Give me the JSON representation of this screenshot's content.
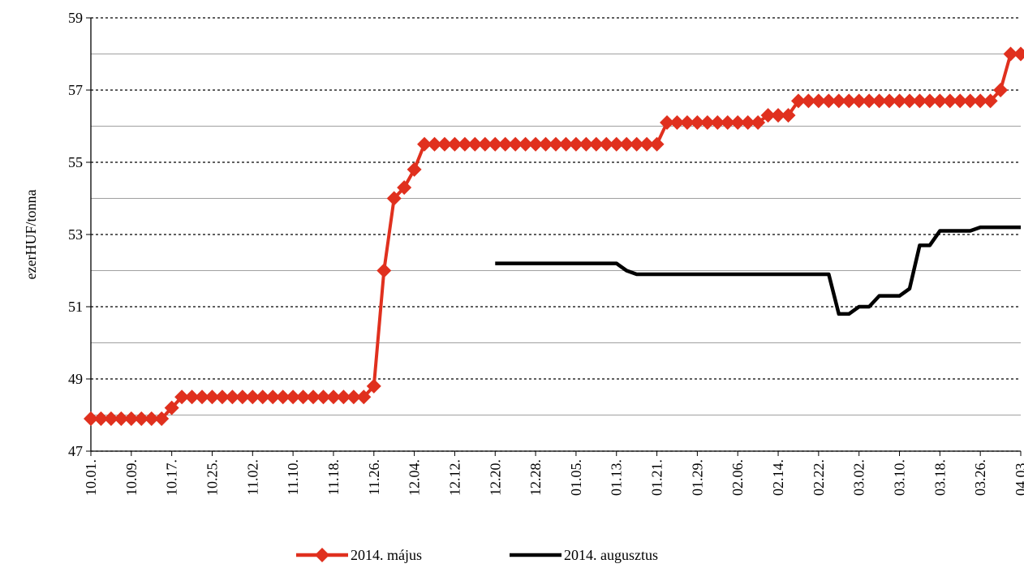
{
  "chart_data": {
    "type": "line",
    "y_label": "ezerHUF/tonna",
    "categories": [
      "10.01.",
      null,
      null,
      null,
      "10.09.",
      null,
      null,
      null,
      "10.17.",
      null,
      null,
      null,
      "10.25.",
      null,
      null,
      null,
      "11.02.",
      null,
      null,
      null,
      "11.10.",
      null,
      null,
      null,
      "11.18.",
      null,
      null,
      null,
      "11.26.",
      null,
      null,
      null,
      "12.04.",
      null,
      null,
      null,
      "12.12.",
      null,
      null,
      null,
      "12.20.",
      null,
      null,
      null,
      "12.28.",
      null,
      null,
      null,
      "01.05.",
      null,
      null,
      null,
      "01.13.",
      null,
      null,
      null,
      "01.21.",
      null,
      null,
      null,
      "01.29.",
      null,
      null,
      null,
      "02.06.",
      null,
      null,
      null,
      "02.14.",
      null,
      null,
      null,
      "02.22.",
      null,
      null,
      null,
      "03.02.",
      null,
      null,
      null,
      "03.10.",
      null,
      null,
      null,
      "03.18.",
      null,
      null,
      null,
      "03.26.",
      null,
      null,
      null,
      "04.03."
    ],
    "series": [
      {
        "name": "2014. május",
        "color": "#e0301e",
        "marker": "diamond",
        "values": [
          47.9,
          47.9,
          47.9,
          47.9,
          47.9,
          47.9,
          47.9,
          47.9,
          48.2,
          48.5,
          48.5,
          48.5,
          48.5,
          48.5,
          48.5,
          48.5,
          48.5,
          48.5,
          48.5,
          48.5,
          48.5,
          48.5,
          48.5,
          48.5,
          48.5,
          48.5,
          48.5,
          48.5,
          48.8,
          52,
          54,
          54.3,
          54.8,
          55.5,
          55.5,
          55.5,
          55.5,
          55.5,
          55.5,
          55.5,
          55.5,
          55.5,
          55.5,
          55.5,
          55.5,
          55.5,
          55.5,
          55.5,
          55.5,
          55.5,
          55.5,
          55.5,
          55.5,
          55.5,
          55.5,
          55.5,
          55.5,
          56.1,
          56.1,
          56.1,
          56.1,
          56.1,
          56.1,
          56.1,
          56.1,
          56.1,
          56.1,
          56.3,
          56.3,
          56.3,
          56.7,
          56.7,
          56.7,
          56.7,
          56.7,
          56.7,
          56.7,
          56.7,
          56.7,
          56.7,
          56.7,
          56.7,
          56.7,
          56.7,
          56.7,
          56.7,
          56.7,
          56.7,
          56.7,
          56.7,
          57,
          58,
          58
        ]
      },
      {
        "name": "2014. augusztus",
        "color": "#000000",
        "marker": "none",
        "values": [
          null,
          null,
          null,
          null,
          null,
          null,
          null,
          null,
          null,
          null,
          null,
          null,
          null,
          null,
          null,
          null,
          null,
          null,
          null,
          null,
          null,
          null,
          null,
          null,
          null,
          null,
          null,
          null,
          null,
          null,
          null,
          null,
          null,
          null,
          null,
          null,
          null,
          null,
          null,
          null,
          52.2,
          52.2,
          52.2,
          52.2,
          52.2,
          52.2,
          52.2,
          52.2,
          52.2,
          52.2,
          52.2,
          52.2,
          52.2,
          52.0,
          51.9,
          51.9,
          51.9,
          51.9,
          51.9,
          51.9,
          51.9,
          51.9,
          51.9,
          51.9,
          51.9,
          51.9,
          51.9,
          51.9,
          51.9,
          51.9,
          51.9,
          51.9,
          51.9,
          51.9,
          50.8,
          50.8,
          51.0,
          51.0,
          51.3,
          51.3,
          51.3,
          51.5,
          52.7,
          52.7,
          53.1,
          53.1,
          53.1,
          53.1,
          53.2,
          53.2,
          53.2,
          53.2,
          53.2
        ]
      }
    ],
    "ylim": [
      47,
      59
    ],
    "yticks": [
      47,
      49,
      51,
      53,
      55,
      57,
      59
    ],
    "yticks_minor": [
      48,
      50,
      52,
      54,
      56,
      58
    ],
    "grid": true,
    "legend": "bottom"
  }
}
